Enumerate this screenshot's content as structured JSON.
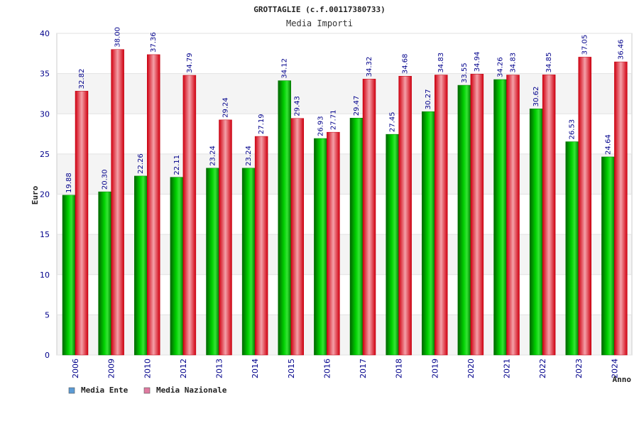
{
  "chart_data": {
    "type": "bar",
    "title": "GROTTAGLIE (c.f.00117380733)",
    "subtitle": "Media Importi",
    "xlabel": "Anno",
    "ylabel": "Euro",
    "ylim": [
      0,
      40
    ],
    "yticks": [
      0,
      5,
      10,
      15,
      20,
      25,
      30,
      35,
      40
    ],
    "grid": true,
    "legend_position": "bottom-left",
    "categories": [
      "2006",
      "2009",
      "2010",
      "2012",
      "2013",
      "2014",
      "2015",
      "2016",
      "2017",
      "2018",
      "2019",
      "2020",
      "2021",
      "2022",
      "2023",
      "2024"
    ],
    "series": [
      {
        "name": "Media Ente",
        "color": "#00c000",
        "legend_color": "#5b9bd5",
        "values": [
          19.88,
          20.3,
          22.26,
          22.11,
          23.24,
          23.24,
          34.12,
          26.93,
          29.47,
          27.45,
          30.27,
          33.55,
          34.26,
          30.62,
          26.53,
          24.64
        ],
        "labels": [
          "19.88",
          "20.30",
          "22.26",
          "22.11",
          "23.24",
          "23.24",
          "34.12",
          "26.93",
          "29.47",
          "27.45",
          "30.27",
          "33.55",
          "34.26",
          "30.62",
          "26.53",
          "24.64"
        ]
      },
      {
        "name": "Media Nazionale",
        "color": "#e8202a",
        "legend_color": "#e07aa0",
        "values": [
          32.82,
          38.0,
          37.36,
          34.79,
          29.24,
          27.19,
          29.43,
          27.71,
          34.32,
          34.68,
          34.83,
          34.94,
          34.83,
          34.85,
          37.05,
          36.46
        ],
        "labels": [
          "32.82",
          "38.00",
          "37.36",
          "34.79",
          "29.24",
          "27.19",
          "29.43",
          "27.71",
          "34.32",
          "34.68",
          "34.83",
          "34.94",
          "34.83",
          "34.85",
          "37.05",
          "36.46"
        ]
      }
    ]
  }
}
